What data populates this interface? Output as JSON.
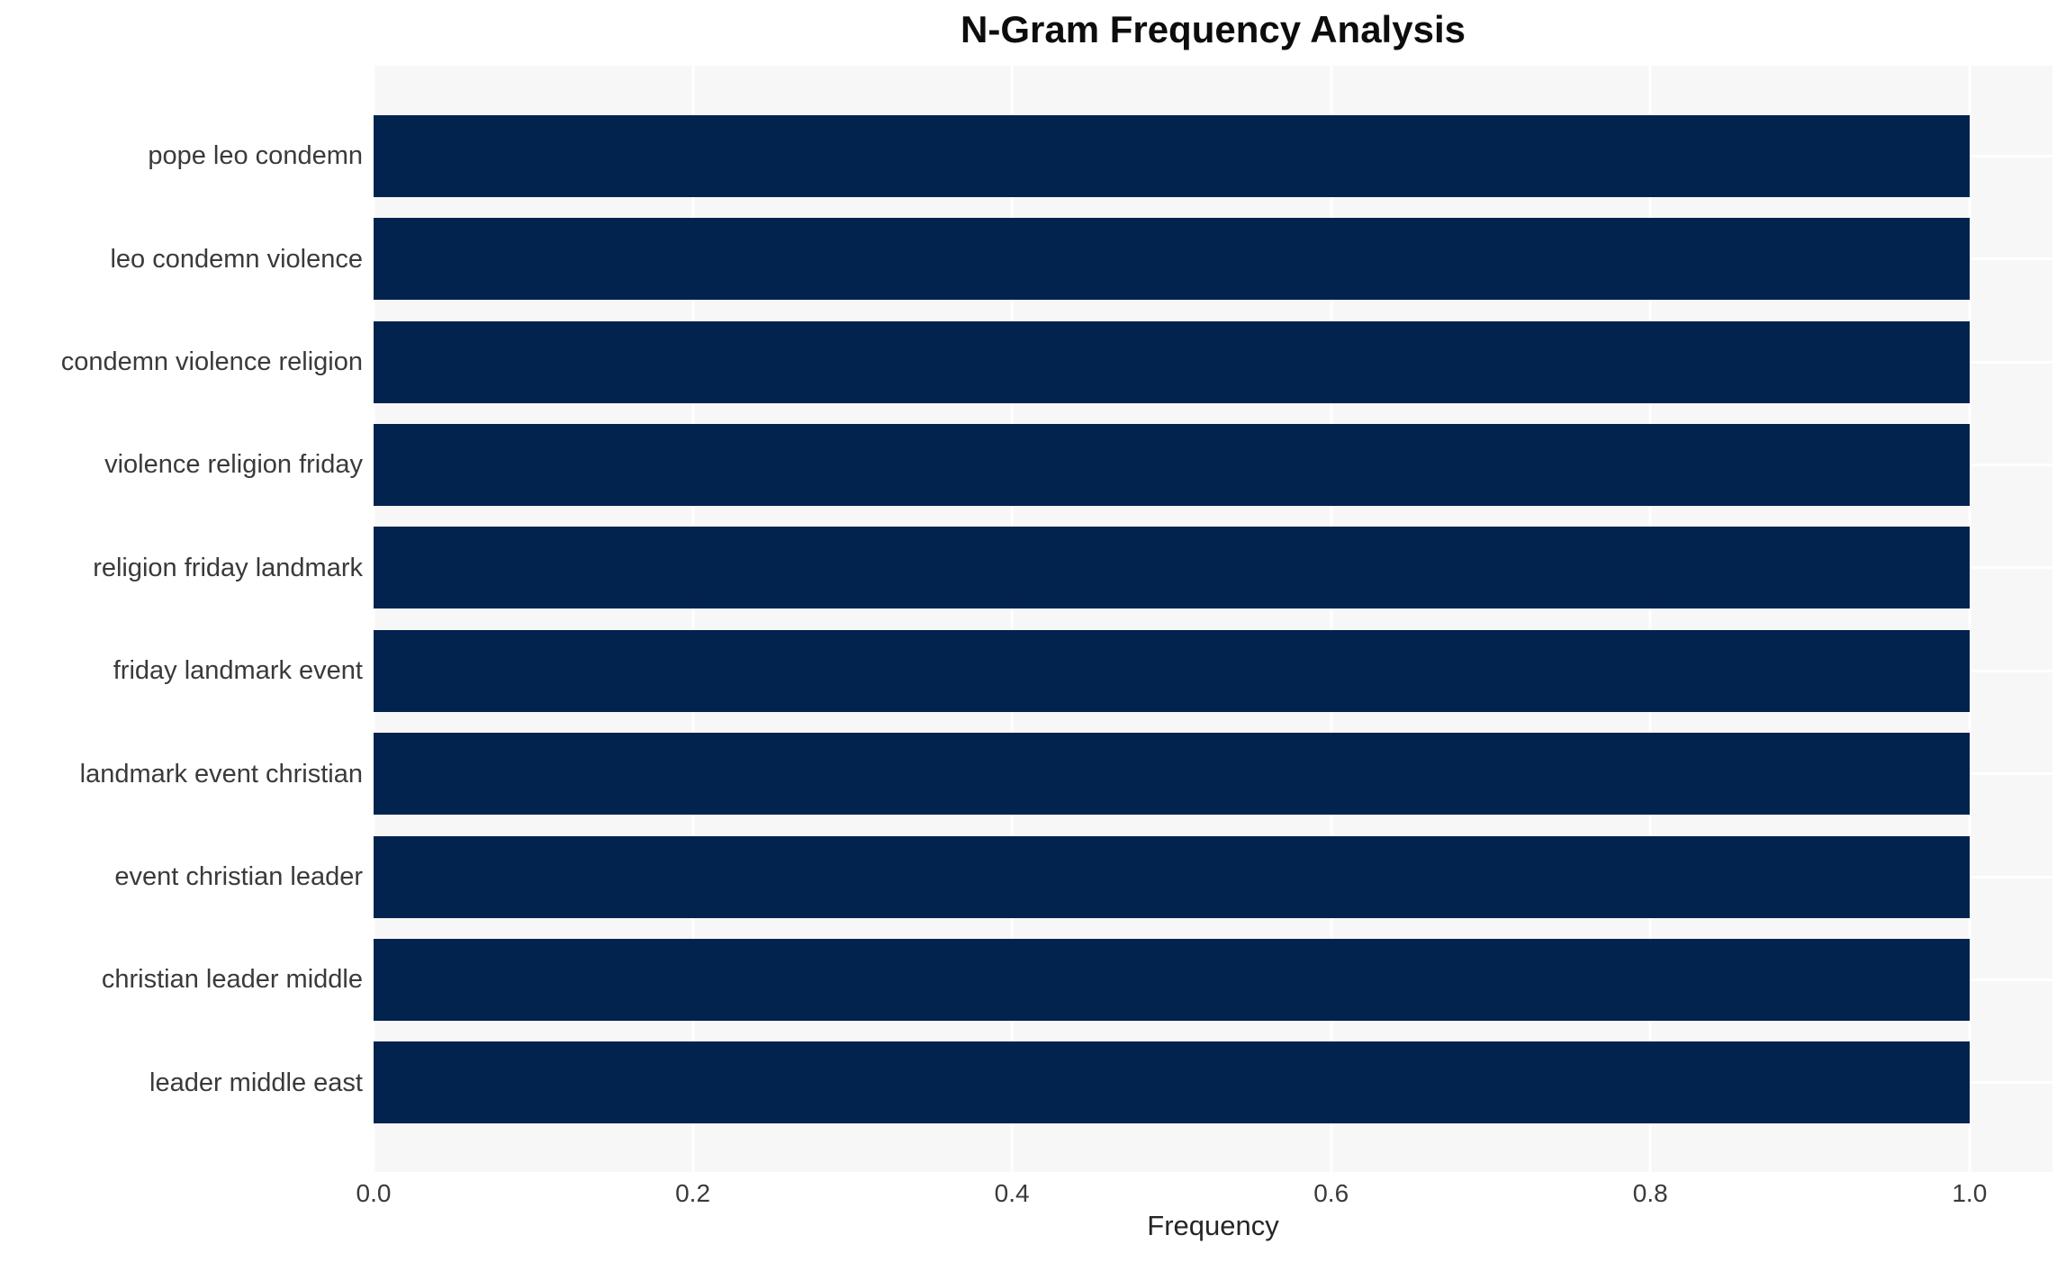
{
  "chart_data": {
    "type": "bar",
    "orientation": "horizontal",
    "title": "N-Gram Frequency Analysis",
    "xlabel": "Frequency",
    "ylabel": "",
    "categories": [
      "pope leo condemn",
      "leo condemn violence",
      "condemn violence religion",
      "violence religion friday",
      "religion friday landmark",
      "friday landmark event",
      "landmark event christian",
      "event christian leader",
      "christian leader middle",
      "leader middle east"
    ],
    "values": [
      1.0,
      1.0,
      1.0,
      1.0,
      1.0,
      1.0,
      1.0,
      1.0,
      1.0,
      1.0
    ],
    "xticks": [
      0.0,
      0.2,
      0.4,
      0.6,
      0.8,
      1.0
    ],
    "xtick_labels": [
      "0.0",
      "0.2",
      "0.4",
      "0.6",
      "0.8",
      "1.0"
    ],
    "xlim": [
      0,
      1.052
    ],
    "grid": true,
    "legend": "none",
    "colors": {
      "bar": "#02234e",
      "plot_background": "#f7f7f7",
      "figure_background": "#ffffff",
      "gridline": "#ffffff",
      "title_text": "#0d0d0d",
      "tick_text": "#3a3a3a",
      "axis_label_text": "#262626"
    }
  }
}
